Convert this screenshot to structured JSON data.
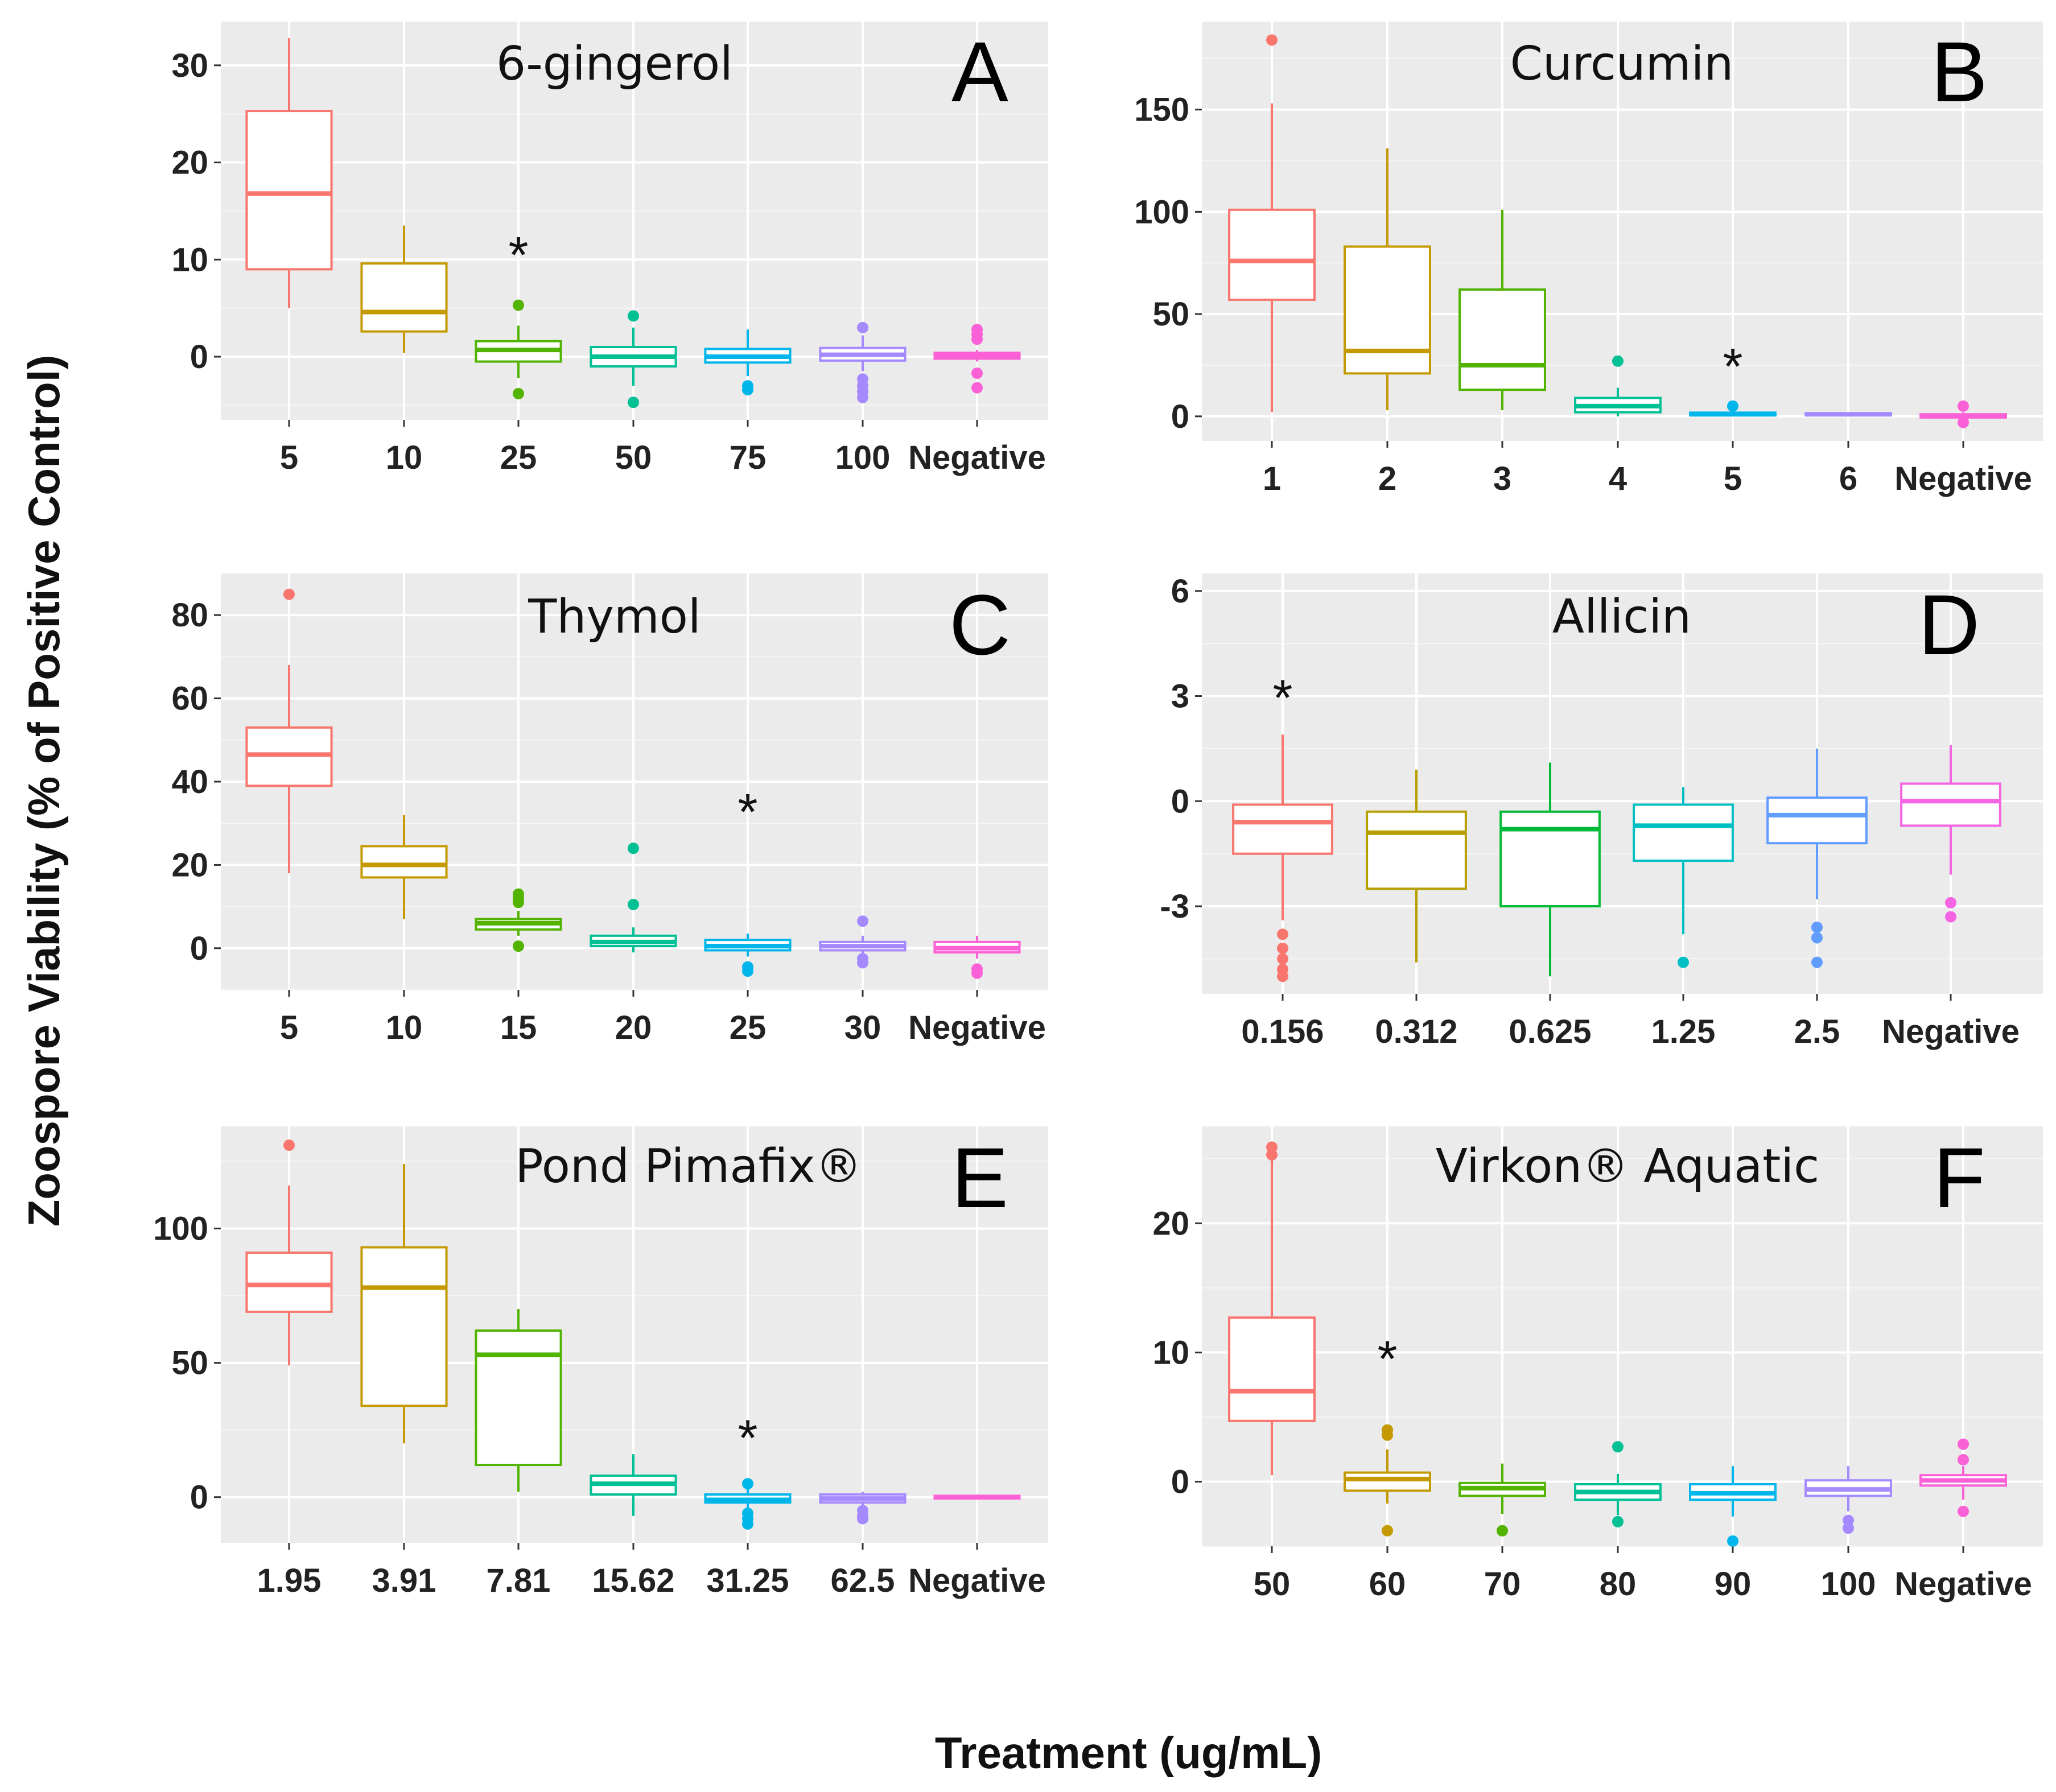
{
  "xlabel": "Treatment (ug/mL)",
  "ylabel": "Zoospore Viability (% of Positive Control)",
  "colors": {
    "panel_bg": "#ebebeb",
    "grid_major": "#ffffff",
    "grid_minor": "#f5f5f5",
    "palette7": [
      "#F8766D",
      "#C49A00",
      "#53B400",
      "#00C094",
      "#00B6EB",
      "#A58AFF",
      "#FB61D7"
    ],
    "palette6": [
      "#F8766D",
      "#B79F00",
      "#00BA38",
      "#00BFC4",
      "#619CFF",
      "#F564E3"
    ]
  },
  "chart_data": [
    {
      "panel": "A",
      "title": "6-gingerol",
      "type": "box",
      "categories": [
        "5",
        "10",
        "25",
        "50",
        "75",
        "100",
        "Negative"
      ],
      "ylim": [
        -6.5,
        34.5
      ],
      "yticks": [
        0,
        10,
        20,
        30
      ],
      "ytick_labels": [
        "0",
        "10",
        "20",
        "30"
      ],
      "significance_marker": {
        "label": "*",
        "category": "25",
        "y": 11.0
      },
      "boxes": [
        {
          "q1": 9.0,
          "median": 16.8,
          "q3": 25.3,
          "lower_whisker": 5.0,
          "upper_whisker": 32.8,
          "outliers": []
        },
        {
          "q1": 2.6,
          "median": 4.6,
          "q3": 9.6,
          "lower_whisker": 0.4,
          "upper_whisker": 13.5,
          "outliers": []
        },
        {
          "q1": -0.5,
          "median": 0.7,
          "q3": 1.6,
          "lower_whisker": -2.2,
          "upper_whisker": 3.2,
          "outliers": [
            5.3,
            -3.8
          ]
        },
        {
          "q1": -1.0,
          "median": 0.0,
          "q3": 1.0,
          "lower_whisker": -3.0,
          "upper_whisker": 3.0,
          "outliers": [
            4.2,
            -4.7
          ]
        },
        {
          "q1": -0.6,
          "median": 0.0,
          "q3": 0.8,
          "lower_whisker": -2.0,
          "upper_whisker": 2.8,
          "outliers": [
            -3.0,
            -3.4
          ]
        },
        {
          "q1": -0.4,
          "median": 0.2,
          "q3": 0.9,
          "lower_whisker": -1.5,
          "upper_whisker": 2.2,
          "outliers": [
            3.0,
            -2.3,
            -3.0,
            -3.6,
            -4.2
          ]
        },
        {
          "q1": -0.2,
          "median": 0.1,
          "q3": 0.4,
          "lower_whisker": -0.5,
          "upper_whisker": 0.7,
          "outliers": [
            2.8,
            2.3,
            1.8,
            -1.7,
            -3.2
          ]
        }
      ]
    },
    {
      "panel": "B",
      "title": "Curcumin",
      "type": "box",
      "categories": [
        "1",
        "2",
        "3",
        "4",
        "5",
        "6",
        "Negative"
      ],
      "ylim": [
        -12,
        193
      ],
      "yticks": [
        0,
        50,
        100,
        150
      ],
      "ytick_labels": [
        "0",
        "50",
        "100",
        "150"
      ],
      "significance_marker": {
        "label": "*",
        "category": "5",
        "y": 27
      },
      "boxes": [
        {
          "q1": 57,
          "median": 76,
          "q3": 101,
          "lower_whisker": 2,
          "upper_whisker": 153,
          "outliers": [
            184
          ]
        },
        {
          "q1": 21,
          "median": 32,
          "q3": 83,
          "lower_whisker": 3,
          "upper_whisker": 131,
          "outliers": []
        },
        {
          "q1": 13,
          "median": 25,
          "q3": 62,
          "lower_whisker": 3,
          "upper_whisker": 101,
          "outliers": []
        },
        {
          "q1": 2,
          "median": 5,
          "q3": 9,
          "lower_whisker": 0,
          "upper_whisker": 14,
          "outliers": [
            27
          ]
        },
        {
          "q1": 0.5,
          "median": 1,
          "q3": 1.8,
          "lower_whisker": 0,
          "upper_whisker": 3,
          "outliers": [
            5
          ]
        },
        {
          "q1": 0.5,
          "median": 1,
          "q3": 1.5,
          "lower_whisker": 0.2,
          "upper_whisker": 1.8,
          "outliers": []
        },
        {
          "q1": -0.5,
          "median": 0,
          "q3": 1,
          "lower_whisker": -1,
          "upper_whisker": 2,
          "outliers": [
            5,
            -3
          ]
        }
      ]
    },
    {
      "panel": "C",
      "title": "Thymol",
      "type": "box",
      "categories": [
        "5",
        "10",
        "15",
        "20",
        "25",
        "30",
        "Negative"
      ],
      "ylim": [
        -10,
        90
      ],
      "yticks": [
        0,
        20,
        40,
        60,
        80
      ],
      "ytick_labels": [
        "0",
        "20",
        "40",
        "60",
        "80"
      ],
      "significance_marker": {
        "label": "*",
        "category": "25",
        "y": 34
      },
      "boxes": [
        {
          "q1": 39,
          "median": 46.5,
          "q3": 53,
          "lower_whisker": 18,
          "upper_whisker": 68,
          "outliers": [
            85
          ]
        },
        {
          "q1": 17,
          "median": 20,
          "q3": 24.5,
          "lower_whisker": 7,
          "upper_whisker": 32,
          "outliers": []
        },
        {
          "q1": 4.5,
          "median": 6,
          "q3": 7,
          "lower_whisker": 3,
          "upper_whisker": 9,
          "outliers": [
            13,
            12,
            11,
            0.5
          ]
        },
        {
          "q1": 0.5,
          "median": 1.5,
          "q3": 3,
          "lower_whisker": -1,
          "upper_whisker": 5,
          "outliers": [
            24,
            10.5
          ]
        },
        {
          "q1": -0.5,
          "median": 0.5,
          "q3": 2,
          "lower_whisker": -2,
          "upper_whisker": 3.5,
          "outliers": [
            -4.5,
            -5.5
          ]
        },
        {
          "q1": -0.5,
          "median": 0.5,
          "q3": 1.5,
          "lower_whisker": -1.5,
          "upper_whisker": 3,
          "outliers": [
            6.5,
            -2.5,
            -3.5
          ]
        },
        {
          "q1": -1,
          "median": 0,
          "q3": 1.5,
          "lower_whisker": -2.5,
          "upper_whisker": 3,
          "outliers": [
            -5,
            -6
          ]
        }
      ]
    },
    {
      "panel": "D",
      "title": "Allicin",
      "type": "box",
      "categories": [
        "0.156",
        "0.312",
        "0.625",
        "1.25",
        "2.5",
        "Negative"
      ],
      "ylim": [
        -5.5,
        6.5
      ],
      "yticks": [
        -3,
        0,
        3,
        6
      ],
      "ytick_labels": [
        "-3",
        "0",
        "3",
        "6"
      ],
      "significance_marker": {
        "label": "*",
        "category": "0.156",
        "y": 3.1
      },
      "boxes": [
        {
          "q1": -1.5,
          "median": -0.6,
          "q3": -0.1,
          "lower_whisker": -3.4,
          "upper_whisker": 1.9,
          "outliers": [
            -3.8,
            -4.2,
            -4.5,
            -4.8,
            -5.0
          ]
        },
        {
          "q1": -2.5,
          "median": -0.9,
          "q3": -0.3,
          "lower_whisker": -4.6,
          "upper_whisker": 0.9,
          "outliers": []
        },
        {
          "q1": -3.0,
          "median": -0.8,
          "q3": -0.3,
          "lower_whisker": -5.0,
          "upper_whisker": 1.1,
          "outliers": []
        },
        {
          "q1": -1.7,
          "median": -0.7,
          "q3": -0.1,
          "lower_whisker": -3.8,
          "upper_whisker": 0.4,
          "outliers": [
            -4.6
          ]
        },
        {
          "q1": -1.2,
          "median": -0.4,
          "q3": 0.1,
          "lower_whisker": -2.8,
          "upper_whisker": 1.5,
          "outliers": [
            -3.6,
            -3.9,
            -4.6
          ]
        },
        {
          "q1": -0.7,
          "median": 0.0,
          "q3": 0.5,
          "lower_whisker": -2.1,
          "upper_whisker": 1.6,
          "outliers": [
            -2.9,
            -3.3
          ]
        }
      ]
    },
    {
      "panel": "E",
      "title": "Pond Pimafix®",
      "type": "box",
      "categories": [
        "1.95",
        "3.91",
        "7.81",
        "15.62",
        "31.25",
        "62.5",
        "Negative"
      ],
      "ylim": [
        -17,
        138
      ],
      "yticks": [
        0,
        50,
        100
      ],
      "ytick_labels": [
        "0",
        "50",
        "100"
      ],
      "significance_marker": {
        "label": "*",
        "category": "31.25",
        "y": 24
      },
      "boxes": [
        {
          "q1": 69,
          "median": 79,
          "q3": 91,
          "lower_whisker": 49,
          "upper_whisker": 116,
          "outliers": [
            131
          ]
        },
        {
          "q1": 34,
          "median": 78,
          "q3": 93,
          "lower_whisker": 20,
          "upper_whisker": 124,
          "outliers": []
        },
        {
          "q1": 12,
          "median": 53,
          "q3": 62,
          "lower_whisker": 2,
          "upper_whisker": 70,
          "outliers": []
        },
        {
          "q1": 1,
          "median": 5,
          "q3": 8,
          "lower_whisker": -7,
          "upper_whisker": 16,
          "outliers": []
        },
        {
          "q1": -2,
          "median": -1,
          "q3": 1,
          "lower_whisker": -4,
          "upper_whisker": 3,
          "outliers": [
            5,
            -6,
            -8,
            -10
          ]
        },
        {
          "q1": -2,
          "median": -0.5,
          "q3": 1,
          "lower_whisker": -3,
          "upper_whisker": 2,
          "outliers": [
            -5,
            -7,
            -8
          ]
        },
        {
          "q1": -0.5,
          "median": 0,
          "q3": 0.5,
          "lower_whisker": -1,
          "upper_whisker": 1,
          "outliers": []
        }
      ]
    },
    {
      "panel": "F",
      "title": "Virkon® Aquatic",
      "type": "box",
      "categories": [
        "50",
        "60",
        "70",
        "80",
        "90",
        "100",
        "Negative"
      ],
      "ylim": [
        -5,
        27.5
      ],
      "yticks": [
        0,
        10,
        20
      ],
      "ytick_labels": [
        "0",
        "10",
        "20"
      ],
      "significance_marker": {
        "label": "*",
        "category": "60",
        "y": 9.9
      },
      "boxes": [
        {
          "q1": 4.7,
          "median": 7.0,
          "q3": 12.7,
          "lower_whisker": 0.5,
          "upper_whisker": 25.0,
          "outliers": [
            25.9,
            25.3
          ]
        },
        {
          "q1": -0.7,
          "median": 0.2,
          "q3": 0.7,
          "lower_whisker": -1.7,
          "upper_whisker": 2.5,
          "outliers": [
            4.0,
            3.6,
            -3.8
          ]
        },
        {
          "q1": -1.1,
          "median": -0.5,
          "q3": -0.1,
          "lower_whisker": -2.5,
          "upper_whisker": 1.4,
          "outliers": [
            -3.8
          ]
        },
        {
          "q1": -1.4,
          "median": -0.8,
          "q3": -0.2,
          "lower_whisker": -2.6,
          "upper_whisker": 0.6,
          "outliers": [
            2.7,
            -3.1
          ]
        },
        {
          "q1": -1.4,
          "median": -0.9,
          "q3": -0.2,
          "lower_whisker": -2.7,
          "upper_whisker": 1.2,
          "outliers": [
            -4.6
          ]
        },
        {
          "q1": -1.1,
          "median": -0.6,
          "q3": 0.1,
          "lower_whisker": -2.3,
          "upper_whisker": 1.2,
          "outliers": [
            -3.0,
            -3.6
          ]
        },
        {
          "q1": -0.3,
          "median": 0.1,
          "q3": 0.5,
          "lower_whisker": -1.4,
          "upper_whisker": 1.2,
          "outliers": [
            2.9,
            1.7,
            -2.3
          ]
        }
      ]
    }
  ]
}
